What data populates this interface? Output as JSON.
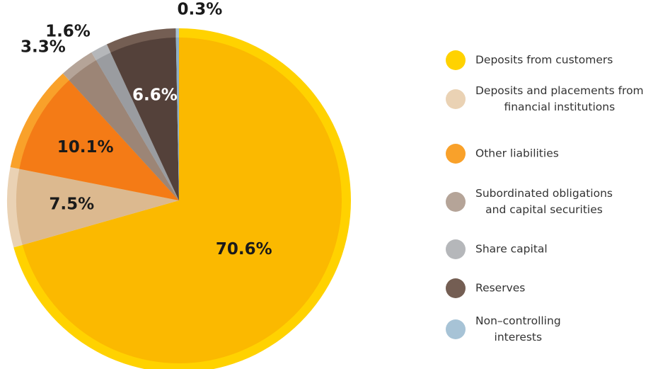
{
  "chart_data": {
    "type": "pie",
    "categories": [
      "Deposits from customers",
      "Deposits and placements from\nfinancial institutions",
      "Other liabilities",
      "Subordinated obligations\nand capital securities",
      "Share capital",
      "Reserves",
      "Non–controlling\ninterests"
    ],
    "values": [
      70.6,
      7.5,
      10.1,
      3.3,
      1.6,
      6.6,
      0.3
    ],
    "value_labels": [
      "70.6%",
      "7.5%",
      "10.1%",
      "3.3%",
      "1.6%",
      "6.6%",
      "0.3%"
    ],
    "colors": [
      "#fbb900",
      "#dcb98f",
      "#f47b16",
      "#9c8576",
      "#9a9ca0",
      "#54413a",
      "#8fb0c6"
    ],
    "ring_colors": [
      "#ffd200",
      "#ead2b4",
      "#f9a12a",
      "#b5a498",
      "#b5b7ba",
      "#745e53",
      "#a7c3d6"
    ],
    "legend": "right"
  }
}
